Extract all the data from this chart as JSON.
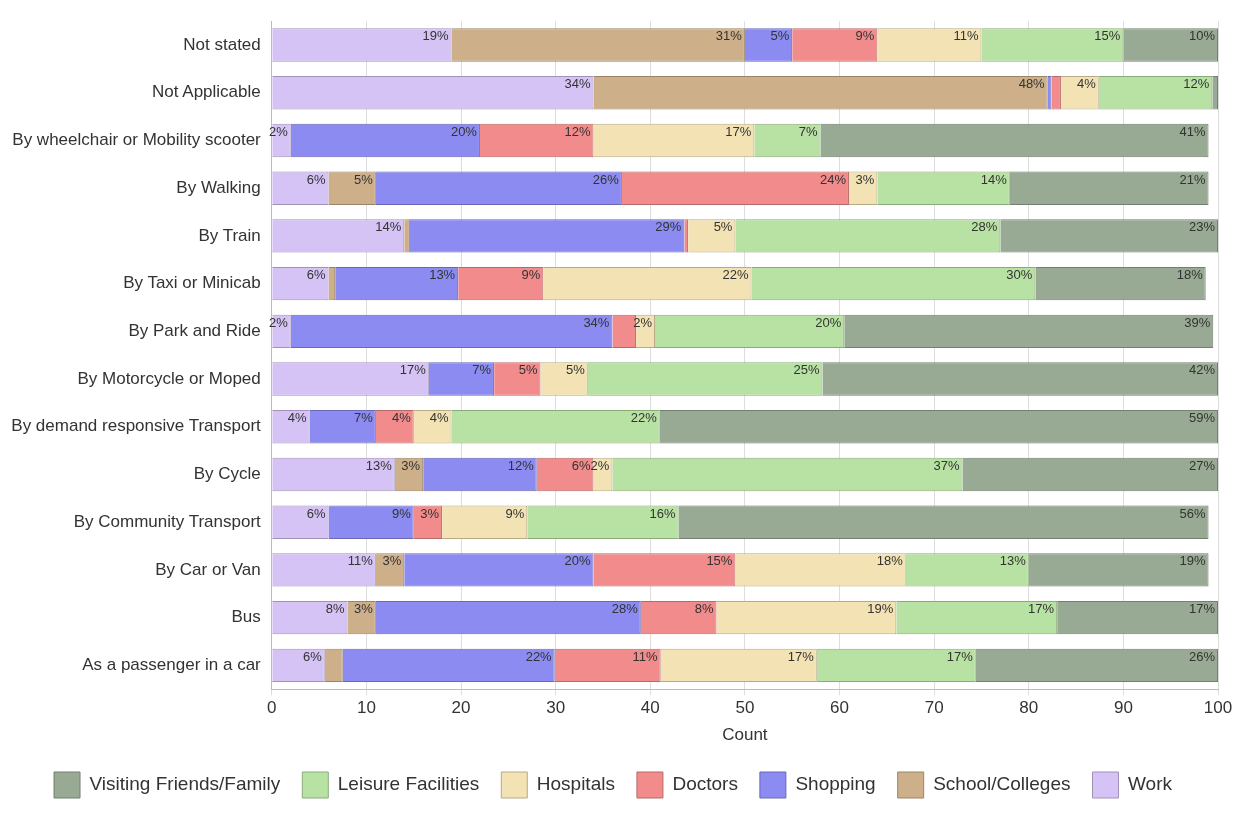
{
  "chart_data": {
    "type": "bar",
    "orientation": "horizontal",
    "stacked": true,
    "xlabel": "Count",
    "xlim": [
      0,
      100
    ],
    "xticks": [
      0,
      10,
      20,
      30,
      40,
      50,
      60,
      70,
      80,
      90,
      100
    ],
    "grid": "x",
    "legend": "bottom",
    "categories": [
      "Not stated",
      "Not Applicable",
      "By wheelchair or Mobility scooter",
      "By Walking",
      "By Train",
      "By Taxi or Minicab",
      "By Park and Ride",
      "By Motorcycle or Moped",
      "By demand responsive Transport",
      "By Cycle",
      "By Community Transport",
      "By Car or Van",
      "Bus",
      "As a passenger in a car"
    ],
    "series": [
      {
        "name": "Work",
        "color": "#d5c3f5",
        "values": [
          19,
          34,
          2,
          6,
          14,
          6,
          2,
          16.6,
          4,
          13,
          6,
          11,
          8,
          5.6
        ],
        "value_labels": [
          "19%",
          "34%",
          "2%",
          "6%",
          "14%",
          "6%",
          "2%",
          "17%",
          "4%",
          "13%",
          "6%",
          "11%",
          "8%",
          "6%"
        ]
      },
      {
        "name": "School/Colleges",
        "color": "#cdb08a",
        "values": [
          31,
          48,
          0,
          5,
          0.6,
          0.7,
          0,
          0,
          0,
          3,
          0,
          3,
          3,
          1.9
        ],
        "value_labels": [
          "31%",
          "48%",
          null,
          "5%",
          null,
          null,
          null,
          null,
          null,
          "3%",
          null,
          "3%",
          "3%",
          null
        ]
      },
      {
        "name": "Shopping",
        "color": "#8b8bf2",
        "values": [
          5,
          0.4,
          20,
          26,
          29,
          13,
          34,
          6.9,
          7,
          12,
          9,
          20,
          28,
          22.4
        ],
        "value_labels": [
          "5%",
          null,
          "20%",
          "26%",
          "29%",
          "13%",
          "34%",
          "7%",
          "7%",
          "12%",
          "9%",
          "20%",
          "28%",
          "22%"
        ]
      },
      {
        "name": "Doctors",
        "color": "#f28c8c",
        "values": [
          9,
          1,
          12,
          24,
          0.4,
          9,
          2.5,
          4.9,
          4,
          6,
          3,
          15,
          8,
          11.2
        ],
        "value_labels": [
          "9%",
          null,
          "12%",
          "24%",
          null,
          "9%",
          null,
          "5%",
          "4%",
          "6%",
          "3%",
          "15%",
          "8%",
          "11%"
        ]
      },
      {
        "name": "Hospitals",
        "color": "#f2e2b4",
        "values": [
          11,
          4,
          17,
          3,
          5,
          22,
          2,
          5,
          4,
          2,
          9,
          18,
          19,
          16.5
        ],
        "value_labels": [
          "11%",
          "4%",
          "17%",
          "3%",
          "5%",
          "22%",
          "2%",
          "5%",
          "4%",
          "2%",
          "9%",
          "18%",
          "19%",
          "17%"
        ]
      },
      {
        "name": "Leisure Facilities",
        "color": "#b8e2a3",
        "values": [
          15,
          12,
          7,
          14,
          28,
          30,
          20,
          24.8,
          22,
          37,
          16,
          13,
          17,
          16.8
        ],
        "value_labels": [
          "15%",
          "12%",
          "7%",
          "14%",
          "28%",
          "30%",
          "20%",
          "25%",
          "22%",
          "37%",
          "16%",
          "13%",
          "17%",
          "17%"
        ]
      },
      {
        "name": "Visiting Friends/Family",
        "color": "#98aa94",
        "values": [
          10,
          0.6,
          41,
          21,
          23,
          18,
          39,
          41.8,
          59,
          27,
          56,
          19,
          17,
          25.6
        ],
        "value_labels": [
          "10%",
          null,
          "41%",
          "21%",
          "23%",
          "18%",
          "39%",
          "42%",
          "59%",
          "27%",
          "56%",
          "19%",
          "17%",
          "26%"
        ]
      }
    ]
  }
}
